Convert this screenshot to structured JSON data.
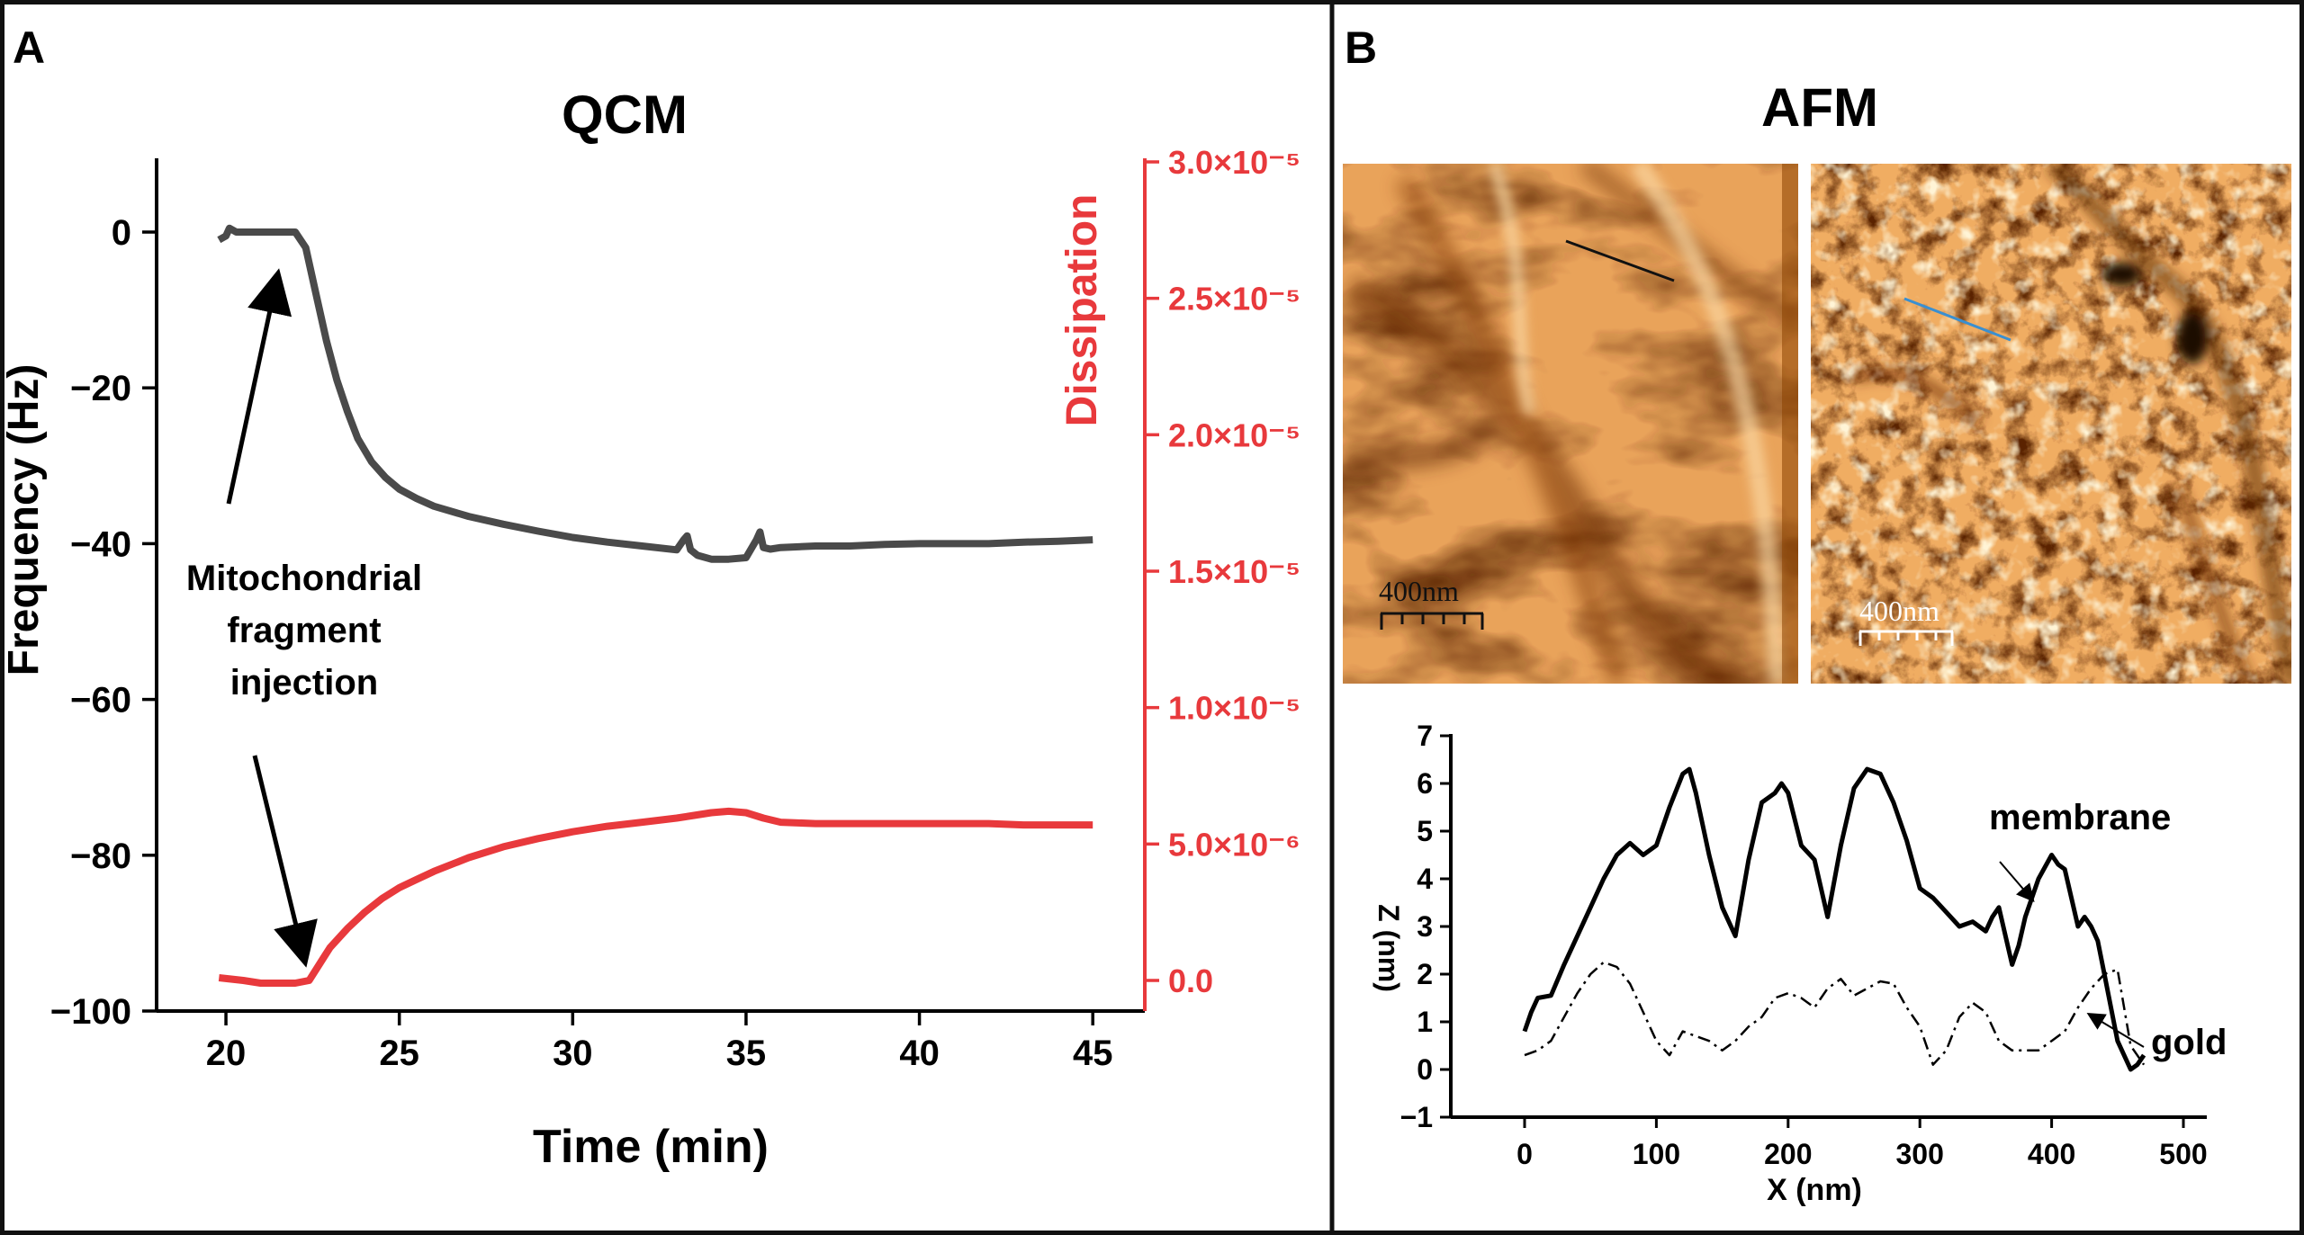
{
  "panel_a": {
    "letter": "A",
    "title": "QCM",
    "annotation_lines": [
      "Mitochondrial",
      "fragment",
      "injection"
    ]
  },
  "panel_b": {
    "letter": "B",
    "title": "AFM",
    "scalebar_left": "400nm",
    "scalebar_right": "400nm"
  },
  "colors": {
    "frequency": "#4a4a4a",
    "dissipation": "#e8393c",
    "dissipation_axis": "#e8393c",
    "afm_dark": "#3a1600",
    "afm_light": "#ffe6b0",
    "line_left": "#111111",
    "line_right": "#3a8fd0"
  },
  "chart_data": [
    {
      "type": "line",
      "xlabel": "Time (min)",
      "ylabel": "Frequency (Hz)",
      "y2label": "Dissipation",
      "xlim": [
        18,
        46.5
      ],
      "ylim": [
        -100,
        10
      ],
      "y2lim": [
        -1e-07,
        3e-05
      ],
      "xticks": [
        20,
        25,
        30,
        35,
        40,
        45
      ],
      "yticks": [
        0,
        -20,
        -40,
        -60,
        -80,
        -100
      ],
      "y2ticks": [
        {
          "value": 0,
          "label": "0.0"
        },
        {
          "value": 5e-06,
          "label": "5.0×10⁻⁶"
        },
        {
          "value": 1e-05,
          "label": "1.0×10⁻⁵"
        },
        {
          "value": 1.5e-05,
          "label": "1.5×10⁻⁵"
        },
        {
          "value": 2e-05,
          "label": "2.0×10⁻⁵"
        },
        {
          "value": 2.5e-05,
          "label": "2.5×10⁻⁵"
        },
        {
          "value": 3e-05,
          "label": "3.0×10⁻⁵"
        }
      ],
      "series": [
        {
          "axis": "left",
          "x": [
            19.8,
            20.0,
            20.1,
            20.3,
            21.0,
            21.8,
            22.0,
            22.3,
            22.6,
            22.9,
            23.2,
            23.5,
            23.8,
            24.2,
            24.6,
            25.0,
            25.5,
            26.0,
            27.0,
            28.0,
            29.0,
            30.0,
            31.0,
            32.0,
            33.0,
            33.2,
            33.3,
            33.4,
            33.6,
            34.0,
            34.5,
            35.0,
            35.3,
            35.4,
            35.5,
            35.7,
            36.0,
            37.0,
            38.0,
            39.0,
            40.0,
            41.0,
            42.0,
            43.0,
            44.0,
            45.0
          ],
          "y": [
            -1,
            -0.5,
            0.5,
            0,
            0,
            0,
            0,
            -2,
            -8,
            -14,
            -19,
            -23,
            -26.5,
            -29.5,
            -31.5,
            -33,
            -34.2,
            -35.2,
            -36.5,
            -37.5,
            -38.4,
            -39.2,
            -39.8,
            -40.3,
            -40.8,
            -39.5,
            -39.0,
            -40.8,
            -41.5,
            -42,
            -42,
            -41.8,
            -39.5,
            -38.5,
            -40.5,
            -40.7,
            -40.5,
            -40.3,
            -40.3,
            -40.1,
            -40,
            -40,
            -40,
            -39.8,
            -39.7,
            -39.5
          ]
        },
        {
          "axis": "right",
          "x": [
            19.8,
            20.5,
            21.0,
            21.5,
            22.0,
            22.4,
            22.8,
            23.0,
            23.5,
            24.0,
            24.5,
            25.0,
            25.5,
            26.0,
            27.0,
            28.0,
            29.0,
            30.0,
            31.0,
            32.0,
            33.0,
            33.5,
            34.0,
            34.5,
            35.0,
            35.5,
            36.0,
            37.0,
            38.0,
            39.0,
            40.0,
            41.0,
            42.0,
            43.0,
            44.0,
            45.0
          ],
          "y": [
            1e-07,
            0,
            -1e-07,
            -1e-07,
            -1e-07,
            0,
            8e-07,
            1.2e-06,
            1.9e-06,
            2.5e-06,
            3e-06,
            3.4e-06,
            3.7e-06,
            4e-06,
            4.5e-06,
            4.9e-06,
            5.2e-06,
            5.45e-06,
            5.65e-06,
            5.8e-06,
            5.95e-06,
            6.05e-06,
            6.15e-06,
            6.2e-06,
            6.15e-06,
            5.95e-06,
            5.8e-06,
            5.75e-06,
            5.75e-06,
            5.75e-06,
            5.75e-06,
            5.75e-06,
            5.75e-06,
            5.7e-06,
            5.7e-06,
            5.7e-06
          ]
        }
      ]
    },
    {
      "type": "line",
      "xlabel": "X (nm)",
      "ylabel": "Z (nm)",
      "xlim": [
        -35,
        505
      ],
      "ylim": [
        -1,
        7
      ],
      "xticks": [
        0,
        100,
        200,
        300,
        400,
        500
      ],
      "yticks": [
        -1,
        0,
        1,
        2,
        3,
        4,
        5,
        6,
        7
      ],
      "annotations": [
        "membrane",
        "gold"
      ],
      "series": [
        {
          "style": "solid",
          "x": [
            0,
            5,
            10,
            20,
            30,
            40,
            50,
            60,
            70,
            80,
            90,
            100,
            110,
            120,
            125,
            130,
            140,
            150,
            160,
            170,
            180,
            190,
            195,
            200,
            210,
            220,
            230,
            240,
            250,
            260,
            270,
            280,
            290,
            300,
            310,
            320,
            330,
            340,
            350,
            355,
            360,
            370,
            375,
            380,
            390,
            400,
            405,
            410,
            420,
            425,
            430,
            435,
            440,
            450,
            460,
            465,
            470
          ],
          "y": [
            0.8,
            1.2,
            1.5,
            1.55,
            2.2,
            2.8,
            3.4,
            4.0,
            4.5,
            4.75,
            4.5,
            4.7,
            5.5,
            6.2,
            6.3,
            5.8,
            4.5,
            3.4,
            2.8,
            4.4,
            5.6,
            5.8,
            6.0,
            5.8,
            4.7,
            4.4,
            3.2,
            4.7,
            5.9,
            6.3,
            6.2,
            5.6,
            4.8,
            3.8,
            3.6,
            3.3,
            3.0,
            3.1,
            2.9,
            3.2,
            3.4,
            2.2,
            2.6,
            3.2,
            4.0,
            4.5,
            4.3,
            4.2,
            3.0,
            3.2,
            3.0,
            2.7,
            2.0,
            0.6,
            0.0,
            0.1,
            0.3
          ]
        },
        {
          "style": "dashdot",
          "x": [
            0,
            10,
            20,
            30,
            40,
            50,
            60,
            70,
            80,
            90,
            100,
            110,
            120,
            130,
            140,
            150,
            160,
            170,
            180,
            190,
            200,
            210,
            220,
            230,
            240,
            250,
            260,
            270,
            280,
            290,
            300,
            310,
            320,
            330,
            340,
            350,
            360,
            370,
            380,
            390,
            400,
            410,
            420,
            430,
            440,
            450,
            460,
            470
          ],
          "y": [
            0.3,
            0.4,
            0.6,
            1.1,
            1.6,
            2.0,
            2.25,
            2.15,
            1.8,
            1.2,
            0.6,
            0.3,
            0.8,
            0.7,
            0.6,
            0.4,
            0.6,
            0.9,
            1.1,
            1.5,
            1.6,
            1.5,
            1.3,
            1.7,
            1.9,
            1.55,
            1.7,
            1.85,
            1.8,
            1.3,
            0.9,
            0.1,
            0.4,
            1.1,
            1.4,
            1.2,
            0.6,
            0.4,
            0.4,
            0.4,
            0.6,
            0.8,
            1.3,
            1.7,
            2.0,
            2.1,
            0.5,
            0.1
          ]
        }
      ]
    }
  ]
}
